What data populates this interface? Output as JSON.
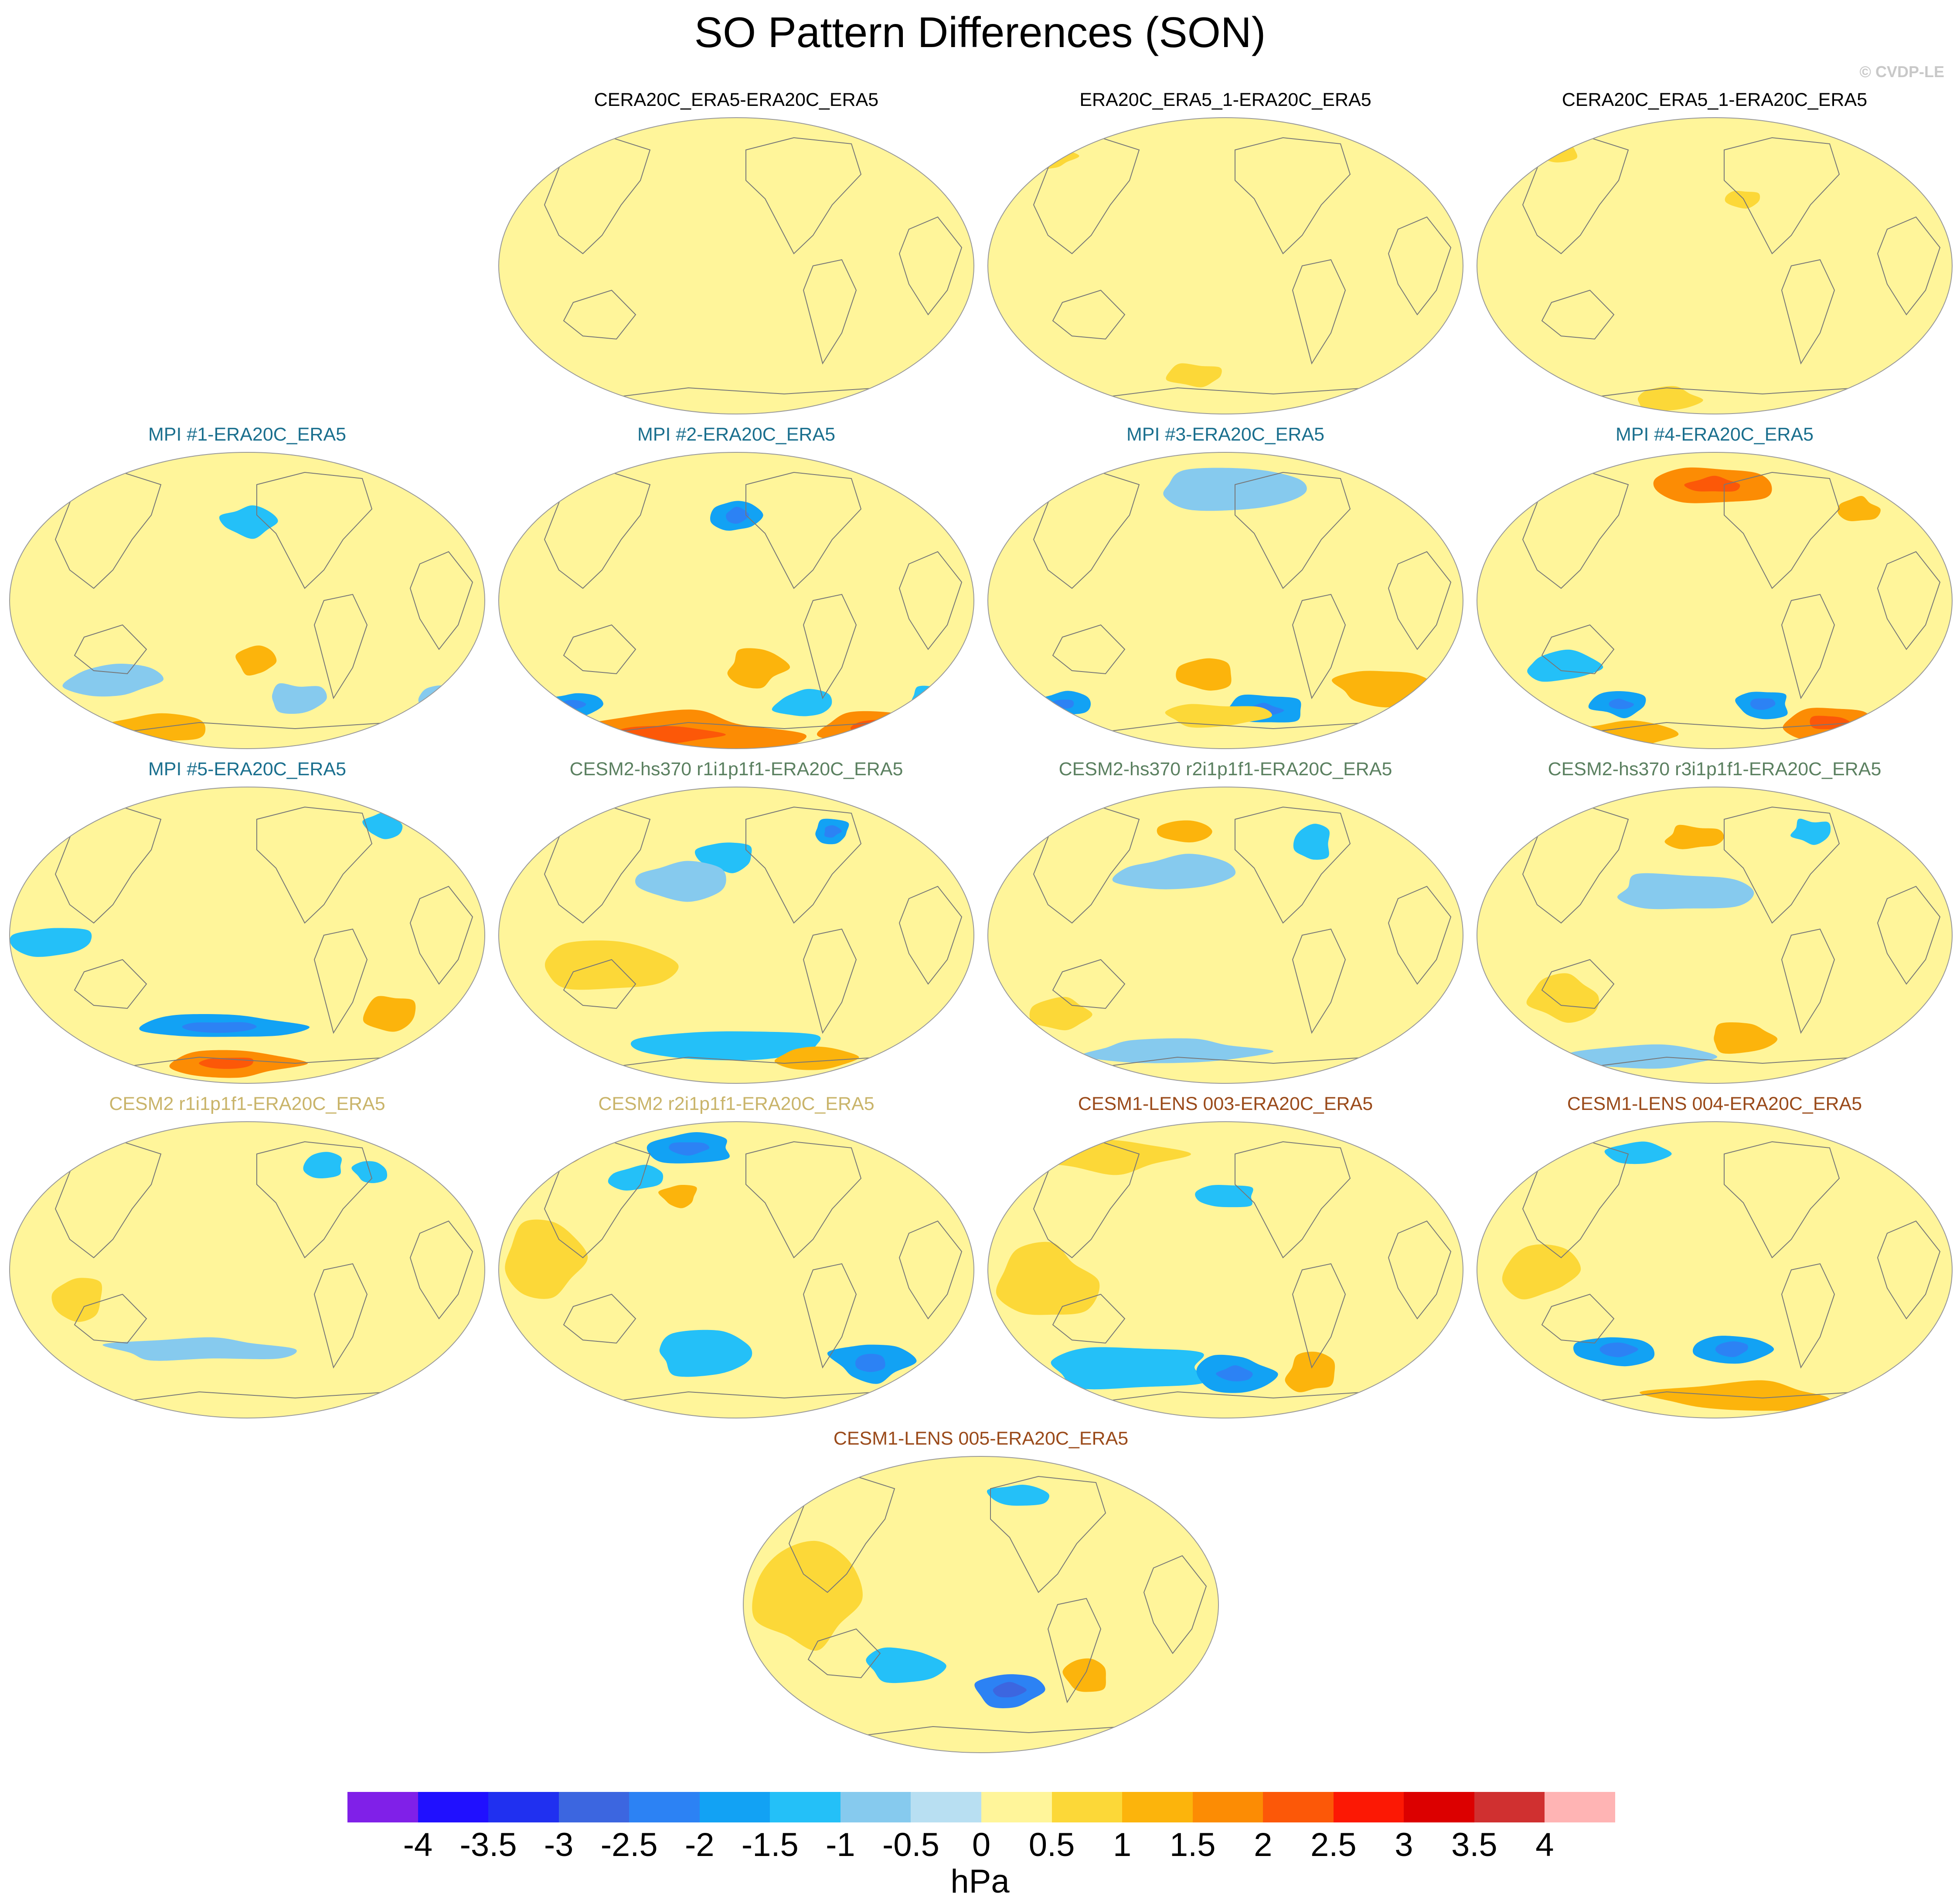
{
  "figure": {
    "title": "SO Pattern Differences (SON)",
    "credit": "© CVDP-LE"
  },
  "colors": {
    "ocean_base": "#b8dff2",
    "land_line": "#777777",
    "outline": "#999999",
    "obs_title": "#000000",
    "mpi_title": "#1a6f8e",
    "cesm2hs_title": "#5b8060",
    "cesm2_title": "#c9b46a",
    "lens_title": "#9a4a1a"
  },
  "panels": [
    {
      "title": "CERA20C_ERA5-ERA20C_ERA5",
      "group": "obs"
    },
    {
      "title": "ERA20C_ERA5_1-ERA20C_ERA5",
      "group": "obs"
    },
    {
      "title": "CERA20C_ERA5_1-ERA20C_ERA5",
      "group": "obs"
    },
    {
      "title": "MPI #1-ERA20C_ERA5",
      "group": "mpi"
    },
    {
      "title": "MPI #2-ERA20C_ERA5",
      "group": "mpi"
    },
    {
      "title": "MPI #3-ERA20C_ERA5",
      "group": "mpi"
    },
    {
      "title": "MPI #4-ERA20C_ERA5",
      "group": "mpi"
    },
    {
      "title": "MPI #5-ERA20C_ERA5",
      "group": "mpi"
    },
    {
      "title": "CESM2-hs370 r1i1p1f1-ERA20C_ERA5",
      "group": "cesm2hs"
    },
    {
      "title": "CESM2-hs370 r2i1p1f1-ERA20C_ERA5",
      "group": "cesm2hs"
    },
    {
      "title": "CESM2-hs370 r3i1p1f1-ERA20C_ERA5",
      "group": "cesm2hs"
    },
    {
      "title": "CESM2 r1i1p1f1-ERA20C_ERA5",
      "group": "cesm2"
    },
    {
      "title": "CESM2 r2i1p1f1-ERA20C_ERA5",
      "group": "cesm2"
    },
    {
      "title": "CESM1-LENS 003-ERA20C_ERA5",
      "group": "lens"
    },
    {
      "title": "CESM1-LENS 004-ERA20C_ERA5",
      "group": "lens"
    },
    {
      "title": "CESM1-LENS 005-ERA20C_ERA5",
      "group": "lens"
    }
  ],
  "colorbar": {
    "units": "hPa",
    "colors": [
      "#8020e8",
      "#2010ff",
      "#2030f0",
      "#3c66e0",
      "#2c82f4",
      "#12a2f4",
      "#24c0f8",
      "#86caee",
      "#b8dff2",
      "#fff59a",
      "#fcd838",
      "#fcb40c",
      "#fc8c04",
      "#fc5808",
      "#fc1804",
      "#dc0000",
      "#d03030",
      "#ffb4b4"
    ],
    "labels": [
      "-4",
      "-3.5",
      "-3",
      "-2.5",
      "-2",
      "-1.5",
      "-1",
      "-0.5",
      "0",
      "0.5",
      "1",
      "1.5",
      "2",
      "2.5",
      "3",
      "3.5",
      "4"
    ]
  }
}
